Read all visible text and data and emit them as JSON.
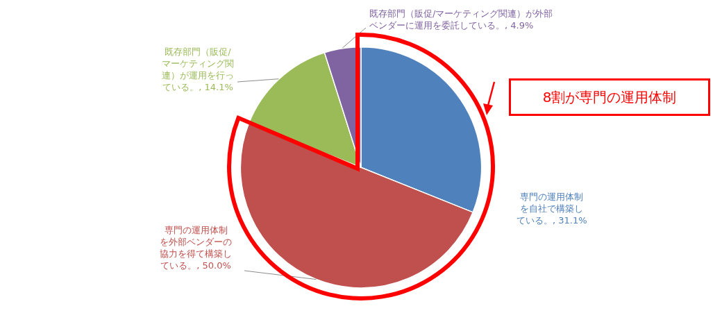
{
  "chart_data": {
    "type": "pie",
    "categories": [
      "専門の運用体制を自社で構築している。",
      "専門の運用体制を外部ベンダーの協力を得て構築している。",
      "既存部門（販促/マーケティング関連）が運用を行っている。",
      "既存部門（販促/マーケティング関連）が外部ベンダーに運用を委託している。"
    ],
    "values": [
      31.1,
      50.0,
      14.1,
      4.9
    ],
    "value_labels": [
      "31.1%",
      "50.0%",
      "14.1%",
      "4.9%"
    ],
    "colors": [
      "#4f81bd",
      "#c0504d",
      "#9bbb59",
      "#8064a2"
    ],
    "annotations": [
      "8割が専門の運用体制"
    ],
    "legend": false
  }
}
